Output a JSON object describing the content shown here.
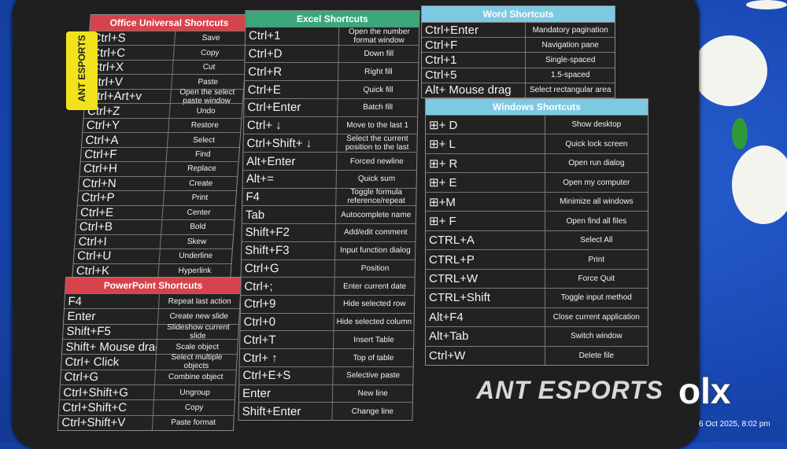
{
  "brand_tag": "ANT ESPORTS",
  "brand_logo": "ANT ESPORTS",
  "sections": [
    {
      "title": "Office Universal Shortcuts",
      "rows": [
        [
          "Ctrl+S",
          "Save"
        ],
        [
          "Ctrl+C",
          "Copy"
        ],
        [
          "Ctrl+X",
          "Cut"
        ],
        [
          "Ctrl+V",
          "Paste"
        ],
        [
          "Ctrl+Art+v",
          "Open the select paste window"
        ],
        [
          "Ctrl+Z",
          "Undo"
        ],
        [
          "Ctrl+Y",
          "Restore"
        ],
        [
          "Ctrl+A",
          "Select"
        ],
        [
          "Ctrl+F",
          "Find"
        ],
        [
          "Ctrl+H",
          "Replace"
        ],
        [
          "Ctrl+N",
          "Create"
        ],
        [
          "Ctrl+P",
          "Print"
        ],
        [
          "Ctrl+E",
          "Center"
        ],
        [
          "Ctrl+B",
          "Bold"
        ],
        [
          "Ctrl+I",
          "Skew"
        ],
        [
          "Ctrl+U",
          "Underline"
        ],
        [
          "Ctrl+K",
          "Hyperlink"
        ]
      ]
    },
    {
      "title": "PowerPoint Shortcuts",
      "rows": [
        [
          "F4",
          "Repeat last action"
        ],
        [
          "Enter",
          "Create new slide"
        ],
        [
          "Shift+F5",
          "Slideshow current slide"
        ],
        [
          "Shift+ Mouse drag",
          "Scale object"
        ],
        [
          "Ctrl+ Click",
          "Select multiple objects"
        ],
        [
          "Ctrl+G",
          "Combine object"
        ],
        [
          "Ctrl+Shift+G",
          "Ungroup"
        ],
        [
          "Ctrl+Shift+C",
          "Copy"
        ],
        [
          "Ctrl+Shift+V",
          "Paste format"
        ]
      ]
    },
    {
      "title": "Excel Shortcuts",
      "rows": [
        [
          "Ctrl+1",
          "Open the number format window"
        ],
        [
          "Ctrl+D",
          "Down fill"
        ],
        [
          "Ctrl+R",
          "Right fill"
        ],
        [
          "Ctrl+E",
          "Quick fill"
        ],
        [
          "Ctrl+Enter",
          "Batch fill"
        ],
        [
          "Ctrl+ ↓",
          "Move to the last 1"
        ],
        [
          "Ctrl+Shift+ ↓",
          "Select the current position to the last"
        ],
        [
          "Alt+Enter",
          "Forced newline"
        ],
        [
          "Alt+=",
          "Quick sum"
        ],
        [
          "F4",
          "Toggle formula reference/repeat"
        ],
        [
          "Tab",
          "Autocomplete name"
        ],
        [
          "Shift+F2",
          "Add/edit comment"
        ],
        [
          "Shift+F3",
          "Input function dialog"
        ],
        [
          "Ctrl+G",
          "Position"
        ],
        [
          "Ctrl+;",
          "Enter current date"
        ],
        [
          "Ctrl+9",
          "Hide selected row"
        ],
        [
          "Ctrl+0",
          "Hide selected column"
        ],
        [
          "Ctrl+T",
          "Insert Table"
        ],
        [
          "Ctrl+ ↑",
          "Top of table"
        ],
        [
          "Ctrl+E+S",
          "Selective paste"
        ],
        [
          "Enter",
          "New line"
        ],
        [
          "Shift+Enter",
          "Change line"
        ]
      ]
    },
    {
      "title": "Word Shortcuts",
      "rows": [
        [
          "Ctrl+Enter",
          "Mandatory pagination"
        ],
        [
          "Ctrl+F",
          "Navigation pane"
        ],
        [
          "Ctrl+1",
          "Single-spaced"
        ],
        [
          "Ctrl+5",
          "1.5-spaced"
        ],
        [
          "Alt+ Mouse drag",
          "Select rectangular area"
        ]
      ]
    },
    {
      "title": "Windows Shortcuts",
      "rows": [
        [
          "⊞+ D",
          "Show desktop"
        ],
        [
          "⊞+ L",
          "Quick lock screen"
        ],
        [
          "⊞+ R",
          "Open run dialog"
        ],
        [
          "⊞+ E",
          "Open my computer"
        ],
        [
          "⊞+M",
          "Minimize all windows"
        ],
        [
          "⊞+ F",
          "Open find all files"
        ],
        [
          "CTRL+A",
          "Select All"
        ],
        [
          "CTRL+P",
          "Print"
        ],
        [
          "CTRL+W",
          "Force Quit"
        ],
        [
          "CTRL+Shift",
          "Toggle input method"
        ],
        [
          "Alt+F4",
          "Close current application"
        ],
        [
          "Alt+Tab",
          "Switch window"
        ],
        [
          "Ctrl+W",
          "Delete file"
        ]
      ]
    }
  ],
  "watermark": {
    "logo": "olx",
    "timestamp": "6 Oct 2025, 8:02 pm"
  }
}
